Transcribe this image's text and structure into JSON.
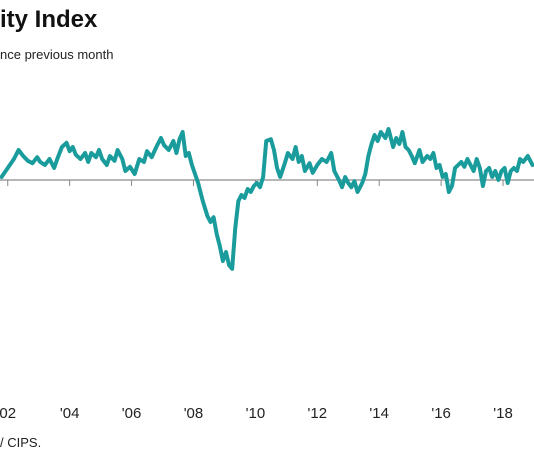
{
  "title": "ity Index",
  "subtitle": "nce previous month",
  "source": "/ CIPS.",
  "colors": {
    "line": "#1a9c9c",
    "baseline": "#8a8a8a",
    "ticks": "#888888"
  },
  "chart_data": {
    "type": "line",
    "title": "ity Index",
    "subtitle": "nce previous month",
    "xlabel": "",
    "ylabel": "",
    "x_tick_labels": [
      {
        "label": "02",
        "year": 2002
      },
      {
        "label": "'04",
        "year": 2004
      },
      {
        "label": "'06",
        "year": 2006
      },
      {
        "label": "'08",
        "year": 2008
      },
      {
        "label": "'10",
        "year": 2010
      },
      {
        "label": "'12",
        "year": 2012
      },
      {
        "label": "'14",
        "year": 2014
      },
      {
        "label": "'16",
        "year": 2016
      },
      {
        "label": "'18",
        "year": 2018
      }
    ],
    "xlim": [
      2001.75,
      2019.0
    ],
    "ylim": [
      25,
      65
    ],
    "baseline": 50,
    "grid": false,
    "series": [
      {
        "values": [
          [
            2001.8,
            50.5
          ],
          [
            2002.0,
            52.0
          ],
          [
            2002.2,
            53.5
          ],
          [
            2002.35,
            55.0
          ],
          [
            2002.5,
            54.0
          ],
          [
            2002.65,
            53.2
          ],
          [
            2002.8,
            52.8
          ],
          [
            2002.95,
            53.8
          ],
          [
            2003.05,
            53.0
          ],
          [
            2003.2,
            52.5
          ],
          [
            2003.35,
            53.5
          ],
          [
            2003.5,
            52.0
          ],
          [
            2003.6,
            53.5
          ],
          [
            2003.75,
            55.5
          ],
          [
            2003.9,
            56.2
          ],
          [
            2004.0,
            54.8
          ],
          [
            2004.1,
            55.5
          ],
          [
            2004.2,
            54.2
          ],
          [
            2004.35,
            53.5
          ],
          [
            2004.5,
            54.5
          ],
          [
            2004.6,
            53.0
          ],
          [
            2004.7,
            54.5
          ],
          [
            2004.85,
            53.8
          ],
          [
            2004.95,
            55.0
          ],
          [
            2005.05,
            53.5
          ],
          [
            2005.2,
            52.5
          ],
          [
            2005.3,
            54.0
          ],
          [
            2005.45,
            53.2
          ],
          [
            2005.55,
            55.0
          ],
          [
            2005.7,
            53.5
          ],
          [
            2005.8,
            51.5
          ],
          [
            2005.95,
            52.2
          ],
          [
            2006.1,
            51.0
          ],
          [
            2006.25,
            53.5
          ],
          [
            2006.4,
            53.0
          ],
          [
            2006.5,
            54.8
          ],
          [
            2006.65,
            53.8
          ],
          [
            2006.8,
            55.5
          ],
          [
            2006.95,
            57.0
          ],
          [
            2007.05,
            55.8
          ],
          [
            2007.2,
            55.0
          ],
          [
            2007.35,
            56.5
          ],
          [
            2007.45,
            54.5
          ],
          [
            2007.55,
            56.8
          ],
          [
            2007.65,
            58.0
          ],
          [
            2007.75,
            54.0
          ],
          [
            2007.85,
            54.5
          ],
          [
            2007.95,
            52.5
          ],
          [
            2008.05,
            51.0
          ],
          [
            2008.15,
            49.5
          ],
          [
            2008.3,
            46.5
          ],
          [
            2008.45,
            44.0
          ],
          [
            2008.55,
            43.0
          ],
          [
            2008.65,
            43.8
          ],
          [
            2008.75,
            41.0
          ],
          [
            2008.85,
            39.0
          ],
          [
            2008.95,
            36.5
          ],
          [
            2009.05,
            38.0
          ],
          [
            2009.15,
            35.8
          ],
          [
            2009.25,
            35.2
          ],
          [
            2009.35,
            42.0
          ],
          [
            2009.45,
            46.5
          ],
          [
            2009.55,
            47.5
          ],
          [
            2009.65,
            47.0
          ],
          [
            2009.75,
            48.5
          ],
          [
            2009.85,
            48.0
          ],
          [
            2009.95,
            49.0
          ],
          [
            2010.05,
            49.5
          ],
          [
            2010.15,
            48.8
          ],
          [
            2010.25,
            50.5
          ],
          [
            2010.35,
            56.5
          ],
          [
            2010.5,
            56.8
          ],
          [
            2010.6,
            55.0
          ],
          [
            2010.7,
            52.0
          ],
          [
            2010.8,
            50.5
          ],
          [
            2010.95,
            52.8
          ],
          [
            2011.05,
            54.5
          ],
          [
            2011.2,
            53.5
          ],
          [
            2011.3,
            55.5
          ],
          [
            2011.4,
            53.0
          ],
          [
            2011.5,
            54.0
          ],
          [
            2011.6,
            51.5
          ],
          [
            2011.75,
            52.8
          ],
          [
            2011.85,
            51.2
          ],
          [
            2012.0,
            52.5
          ],
          [
            2012.15,
            53.5
          ],
          [
            2012.3,
            53.0
          ],
          [
            2012.45,
            54.5
          ],
          [
            2012.55,
            51.5
          ],
          [
            2012.7,
            50.0
          ],
          [
            2012.8,
            48.8
          ],
          [
            2012.9,
            50.5
          ],
          [
            2013.0,
            49.5
          ],
          [
            2013.1,
            48.8
          ],
          [
            2013.2,
            49.8
          ],
          [
            2013.3,
            48.0
          ],
          [
            2013.45,
            49.5
          ],
          [
            2013.55,
            51.0
          ],
          [
            2013.65,
            54.0
          ],
          [
            2013.75,
            56.0
          ],
          [
            2013.85,
            57.5
          ],
          [
            2013.95,
            56.5
          ],
          [
            2014.05,
            58.0
          ],
          [
            2014.2,
            57.0
          ],
          [
            2014.3,
            58.5
          ],
          [
            2014.45,
            55.5
          ],
          [
            2014.55,
            57.0
          ],
          [
            2014.65,
            56.0
          ],
          [
            2014.75,
            58.0
          ],
          [
            2014.85,
            55.5
          ],
          [
            2014.95,
            55.0
          ],
          [
            2015.05,
            54.0
          ],
          [
            2015.15,
            52.8
          ],
          [
            2015.3,
            55.0
          ],
          [
            2015.4,
            53.0
          ],
          [
            2015.55,
            54.0
          ],
          [
            2015.65,
            53.5
          ],
          [
            2015.75,
            54.5
          ],
          [
            2015.85,
            52.0
          ],
          [
            2015.95,
            52.5
          ],
          [
            2016.05,
            50.5
          ],
          [
            2016.15,
            51.0
          ],
          [
            2016.25,
            48.0
          ],
          [
            2016.35,
            49.0
          ],
          [
            2016.45,
            52.0
          ],
          [
            2016.55,
            52.5
          ],
          [
            2016.65,
            53.0
          ],
          [
            2016.75,
            52.2
          ],
          [
            2016.85,
            53.5
          ],
          [
            2016.95,
            52.5
          ],
          [
            2017.05,
            51.5
          ],
          [
            2017.15,
            53.5
          ],
          [
            2017.25,
            52.0
          ],
          [
            2017.35,
            49.0
          ],
          [
            2017.45,
            51.5
          ],
          [
            2017.55,
            52.0
          ],
          [
            2017.65,
            50.5
          ],
          [
            2017.75,
            51.5
          ],
          [
            2017.85,
            50.0
          ],
          [
            2017.95,
            51.5
          ],
          [
            2018.05,
            52.0
          ],
          [
            2018.15,
            49.5
          ],
          [
            2018.25,
            51.5
          ],
          [
            2018.35,
            52.0
          ],
          [
            2018.45,
            51.5
          ],
          [
            2018.55,
            53.5
          ],
          [
            2018.65,
            53.0
          ],
          [
            2018.8,
            54.0
          ],
          [
            2018.95,
            52.5
          ]
        ]
      }
    ]
  }
}
